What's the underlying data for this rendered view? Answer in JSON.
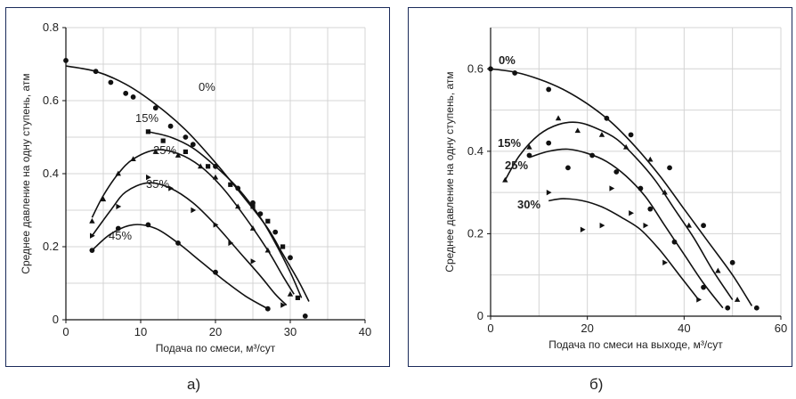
{
  "chart_data": [
    {
      "type": "scatter",
      "xlabel": "Подача по смеси, м³/сут",
      "ylabel": "Среднее давление на одну ступень, атм",
      "xlim": [
        0,
        40
      ],
      "ylim": [
        0,
        0.8
      ],
      "xticks": [
        "0",
        "10",
        "20",
        "30",
        "40"
      ],
      "yticks": [
        "0",
        "0.2",
        "0.4",
        "0.6",
        "0.8"
      ],
      "grid": true,
      "caption": "а)",
      "series": [
        {
          "name": "0%",
          "marker": "circle",
          "points": [
            [
              0,
              0.71
            ],
            [
              4,
              0.68
            ],
            [
              6,
              0.65
            ],
            [
              8,
              0.62
            ],
            [
              9,
              0.61
            ],
            [
              12,
              0.58
            ],
            [
              14,
              0.53
            ],
            [
              16,
              0.5
            ],
            [
              17,
              0.48
            ],
            [
              20,
              0.42
            ],
            [
              23,
              0.36
            ],
            [
              25,
              0.32
            ],
            [
              26,
              0.29
            ],
            [
              28,
              0.24
            ],
            [
              30,
              0.17
            ],
            [
              32,
              0.01
            ]
          ],
          "curve": [
            [
              0,
              0.695
            ],
            [
              4,
              0.68
            ],
            [
              8,
              0.645
            ],
            [
              12,
              0.59
            ],
            [
              16,
              0.52
            ],
            [
              20,
              0.43
            ],
            [
              24,
              0.33
            ],
            [
              27,
              0.25
            ],
            [
              29,
              0.18
            ],
            [
              31,
              0.11
            ],
            [
              32.5,
              0.05
            ]
          ]
        },
        {
          "name": "15%",
          "marker": "square",
          "points": [
            [
              11,
              0.515
            ],
            [
              13,
              0.49
            ],
            [
              16,
              0.46
            ],
            [
              19,
              0.42
            ],
            [
              22,
              0.37
            ],
            [
              25,
              0.31
            ],
            [
              27,
              0.27
            ],
            [
              29,
              0.2
            ],
            [
              31,
              0.06
            ]
          ],
          "curve": [
            [
              11,
              0.515
            ],
            [
              14,
              0.5
            ],
            [
              17,
              0.47
            ],
            [
              20,
              0.42
            ],
            [
              23,
              0.36
            ],
            [
              26,
              0.28
            ],
            [
              28,
              0.21
            ],
            [
              30,
              0.13
            ],
            [
              31.5,
              0.06
            ]
          ]
        },
        {
          "name": "25%",
          "marker": "triangle",
          "points": [
            [
              3.5,
              0.27
            ],
            [
              5,
              0.33
            ],
            [
              7,
              0.4
            ],
            [
              9,
              0.44
            ],
            [
              12,
              0.46
            ],
            [
              15,
              0.45
            ],
            [
              18,
              0.42
            ],
            [
              20,
              0.39
            ],
            [
              23,
              0.31
            ],
            [
              25,
              0.25
            ],
            [
              27,
              0.19
            ],
            [
              30,
              0.07
            ]
          ],
          "curve": [
            [
              3.5,
              0.28
            ],
            [
              5,
              0.34
            ],
            [
              7,
              0.4
            ],
            [
              9,
              0.44
            ],
            [
              12,
              0.465
            ],
            [
              15,
              0.455
            ],
            [
              18,
              0.42
            ],
            [
              21,
              0.36
            ],
            [
              24,
              0.28
            ],
            [
              27,
              0.19
            ],
            [
              29,
              0.12
            ],
            [
              30.5,
              0.07
            ]
          ]
        },
        {
          "name": "35%",
          "marker": "triangle-right",
          "points": [
            [
              3.5,
              0.23
            ],
            [
              7,
              0.31
            ],
            [
              11,
              0.39
            ],
            [
              14,
              0.36
            ],
            [
              17,
              0.3
            ],
            [
              20,
              0.26
            ],
            [
              22,
              0.21
            ],
            [
              25,
              0.16
            ],
            [
              29,
              0.04
            ]
          ],
          "curve": [
            [
              3.5,
              0.23
            ],
            [
              6,
              0.3
            ],
            [
              8,
              0.35
            ],
            [
              11,
              0.375
            ],
            [
              14,
              0.36
            ],
            [
              17,
              0.32
            ],
            [
              20,
              0.26
            ],
            [
              23,
              0.19
            ],
            [
              26,
              0.12
            ],
            [
              28,
              0.07
            ],
            [
              29.5,
              0.04
            ]
          ]
        },
        {
          "name": "45%",
          "marker": "circle",
          "points": [
            [
              3.5,
              0.19
            ],
            [
              7,
              0.25
            ],
            [
              11,
              0.26
            ],
            [
              15,
              0.21
            ],
            [
              20,
              0.13
            ],
            [
              27,
              0.03
            ]
          ],
          "curve": [
            [
              3.5,
              0.19
            ],
            [
              6,
              0.235
            ],
            [
              9,
              0.26
            ],
            [
              12,
              0.25
            ],
            [
              15,
              0.21
            ],
            [
              18,
              0.16
            ],
            [
              21,
              0.11
            ],
            [
              24,
              0.065
            ],
            [
              27,
              0.03
            ]
          ]
        }
      ]
    },
    {
      "type": "scatter",
      "xlabel": "Подача по смеси на выходе, м³/сут",
      "ylabel": "Среднее давление на одну ступень, атм",
      "xlim": [
        0,
        60
      ],
      "ylim": [
        0,
        0.7
      ],
      "xticks": [
        "0",
        "20",
        "40",
        "60"
      ],
      "yticks": [
        "0",
        "0.2",
        "0.4",
        "0.6"
      ],
      "grid": true,
      "caption": "б)",
      "series": [
        {
          "name": "0%",
          "marker": "circle",
          "points": [
            [
              0,
              0.6
            ],
            [
              5,
              0.59
            ],
            [
              12,
              0.55
            ],
            [
              24,
              0.48
            ],
            [
              29,
              0.44
            ],
            [
              37,
              0.36
            ],
            [
              44,
              0.22
            ],
            [
              50,
              0.13
            ],
            [
              55,
              0.02
            ]
          ],
          "curve": [
            [
              0,
              0.6
            ],
            [
              5,
              0.592
            ],
            [
              10,
              0.575
            ],
            [
              15,
              0.55
            ],
            [
              20,
              0.515
            ],
            [
              25,
              0.47
            ],
            [
              30,
              0.41
            ],
            [
              35,
              0.34
            ],
            [
              40,
              0.26
            ],
            [
              45,
              0.18
            ],
            [
              50,
              0.1
            ],
            [
              54,
              0.025
            ]
          ]
        },
        {
          "name": "15%",
          "marker": "triangle",
          "points": [
            [
              3,
              0.33
            ],
            [
              8,
              0.41
            ],
            [
              14,
              0.48
            ],
            [
              18,
              0.45
            ],
            [
              23,
              0.44
            ],
            [
              28,
              0.41
            ],
            [
              33,
              0.38
            ],
            [
              36,
              0.3
            ],
            [
              41,
              0.22
            ],
            [
              47,
              0.11
            ],
            [
              51,
              0.04
            ]
          ],
          "curve": [
            [
              3,
              0.33
            ],
            [
              6,
              0.39
            ],
            [
              10,
              0.44
            ],
            [
              14,
              0.465
            ],
            [
              18,
              0.47
            ],
            [
              22,
              0.455
            ],
            [
              26,
              0.43
            ],
            [
              30,
              0.385
            ],
            [
              34,
              0.33
            ],
            [
              38,
              0.26
            ],
            [
              42,
              0.19
            ],
            [
              46,
              0.11
            ],
            [
              50,
              0.04
            ]
          ]
        },
        {
          "name": "25%",
          "marker": "circle",
          "points": [
            [
              8,
              0.39
            ],
            [
              12,
              0.42
            ],
            [
              16,
              0.36
            ],
            [
              21,
              0.39
            ],
            [
              26,
              0.35
            ],
            [
              31,
              0.31
            ],
            [
              33,
              0.26
            ],
            [
              38,
              0.18
            ],
            [
              44,
              0.07
            ],
            [
              49,
              0.02
            ]
          ],
          "curve": [
            [
              8,
              0.385
            ],
            [
              12,
              0.4
            ],
            [
              16,
              0.405
            ],
            [
              20,
              0.395
            ],
            [
              24,
              0.375
            ],
            [
              28,
              0.34
            ],
            [
              32,
              0.29
            ],
            [
              36,
              0.22
            ],
            [
              40,
              0.15
            ],
            [
              44,
              0.08
            ],
            [
              48,
              0.02
            ]
          ]
        },
        {
          "name": "30%",
          "marker": "triangle-right",
          "points": [
            [
              12,
              0.3
            ],
            [
              19,
              0.21
            ],
            [
              23,
              0.22
            ],
            [
              25,
              0.31
            ],
            [
              29,
              0.25
            ],
            [
              32,
              0.22
            ],
            [
              36,
              0.13
            ],
            [
              43,
              0.04
            ]
          ],
          "curve": [
            [
              12,
              0.28
            ],
            [
              15,
              0.285
            ],
            [
              19,
              0.28
            ],
            [
              23,
              0.265
            ],
            [
              27,
              0.24
            ],
            [
              31,
              0.21
            ],
            [
              35,
              0.16
            ],
            [
              39,
              0.1
            ],
            [
              43,
              0.04
            ]
          ]
        }
      ]
    }
  ]
}
